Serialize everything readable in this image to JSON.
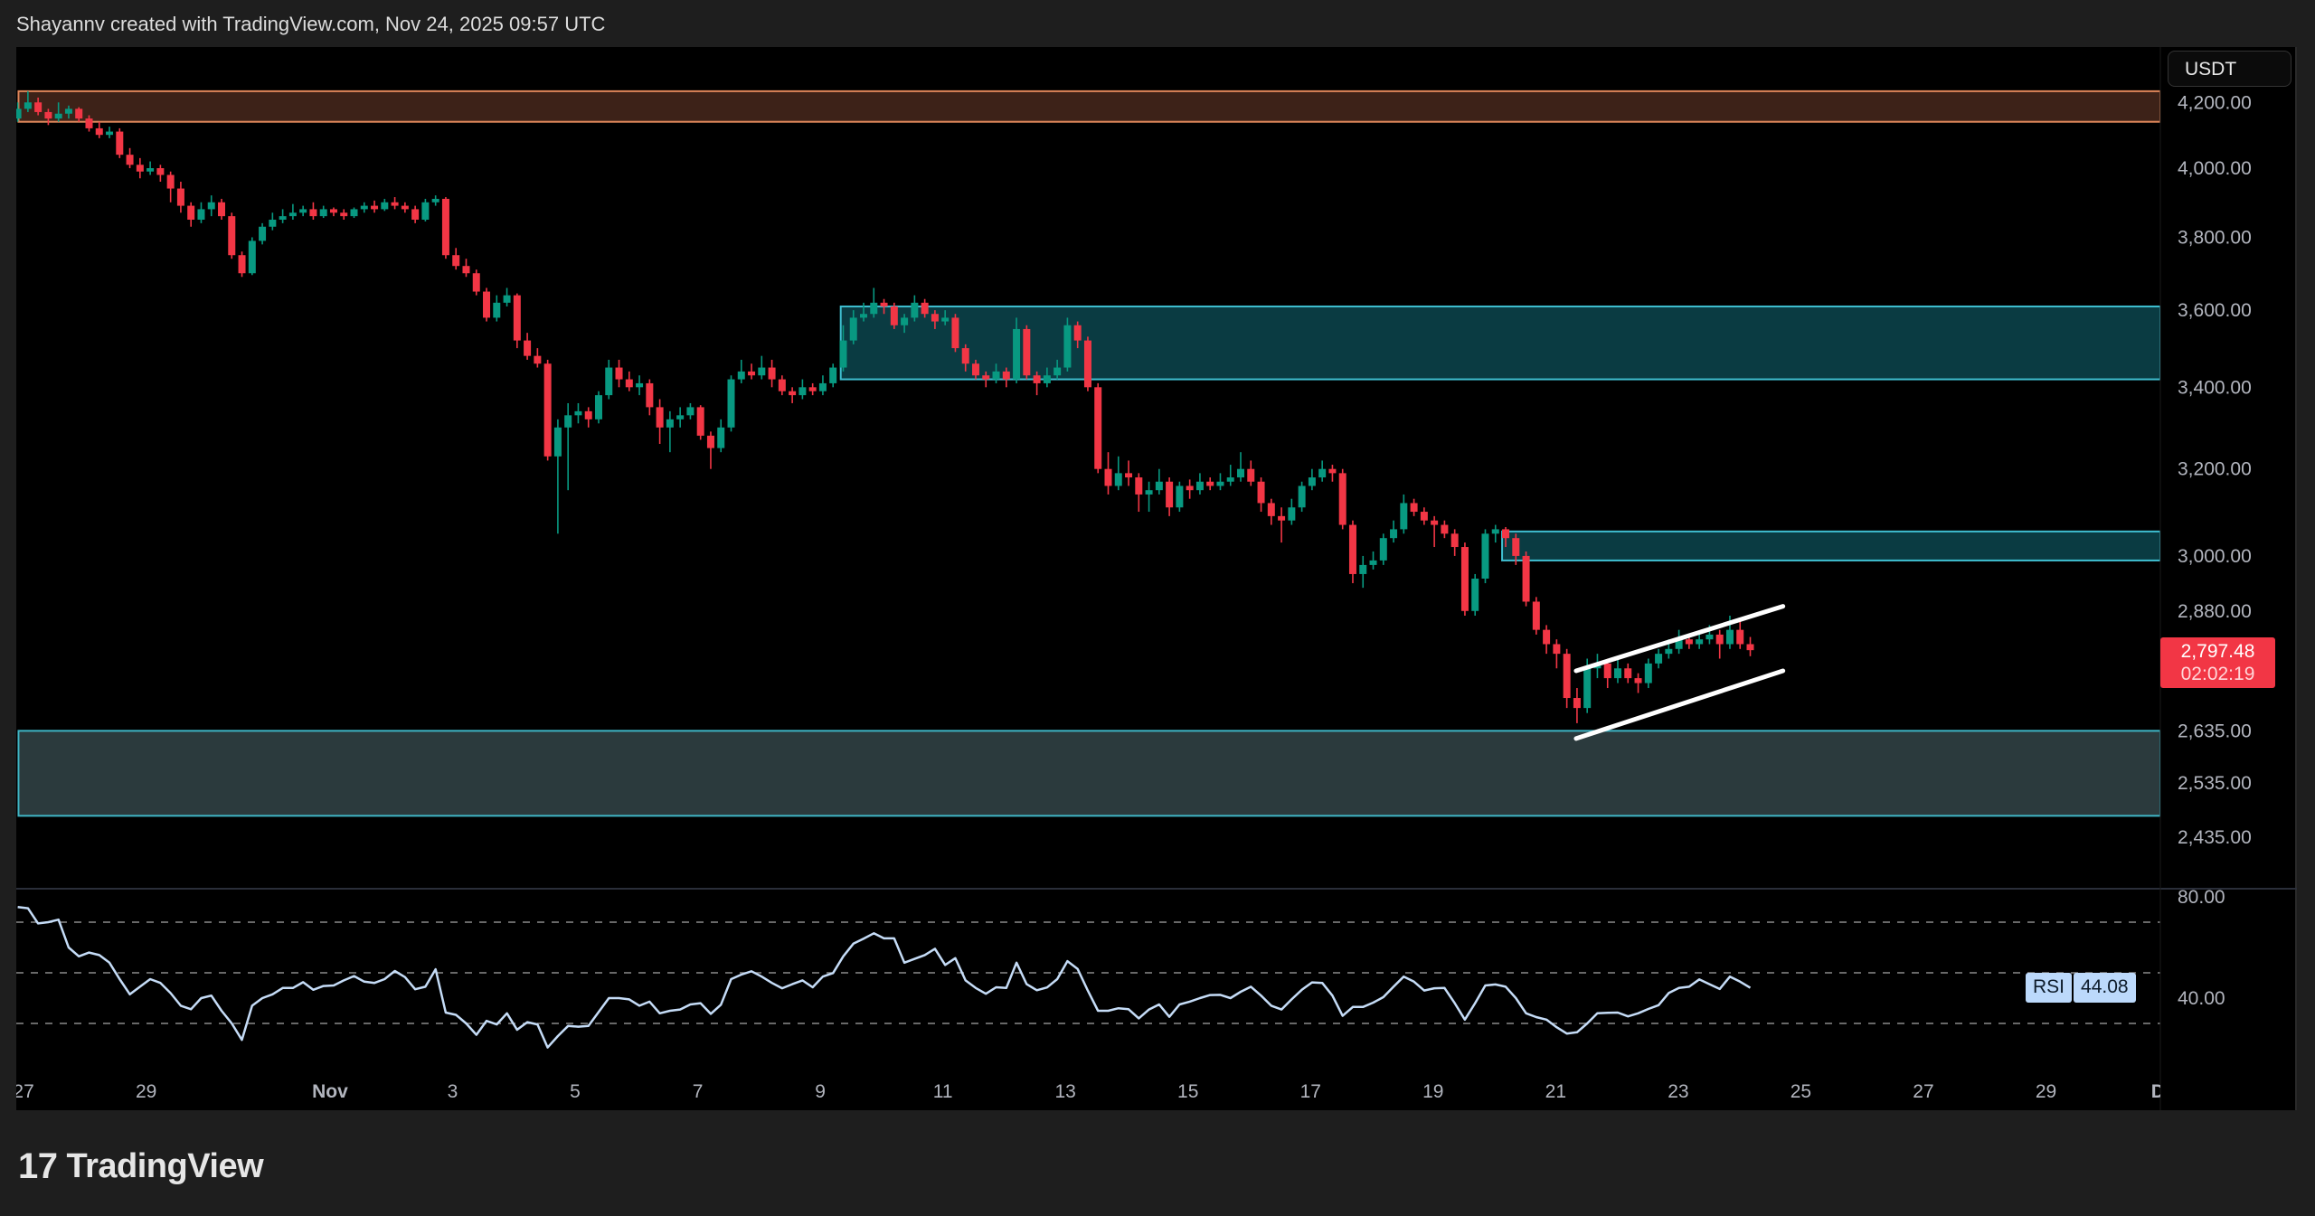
{
  "header": {
    "attribution": "Shayannv created with TradingView.com, Nov 24, 2025 09:57 UTC"
  },
  "footer": {
    "logo_text": "TradingView",
    "logo_mark": "17"
  },
  "currency_button": "USDT",
  "last_price": {
    "value": "2,797.48",
    "countdown": "02:02:19"
  },
  "rsi_badge": {
    "label": "RSI",
    "value": "44.08"
  },
  "colors": {
    "up": "#089981",
    "down": "#f23645",
    "rsi_line": "#c5dcf7",
    "background": "#000000",
    "supply_zone": "#3d2218",
    "supply_border": "#e0875a",
    "resistance_zone": "#0a3b42",
    "resistance_border": "#3fbfd1",
    "support_zone": "#2b3a3d",
    "support_border": "#3fb6c6",
    "wedge": "#ffffff"
  },
  "chart_data": {
    "type": "candlestick",
    "price_scale": "log",
    "price_axis_labels": [
      "4,200.00",
      "4,000.00",
      "3,800.00",
      "3,600.00",
      "3,400.00",
      "3,200.00",
      "3,000.00",
      "2,880.00",
      "2,635.00",
      "2,535.00",
      "2,435.00"
    ],
    "price_axis_values": [
      4200,
      4000,
      3800,
      3600,
      3400,
      3200,
      3000,
      2880,
      2635,
      2535,
      2435
    ],
    "time_axis": [
      {
        "label": "27",
        "date": "2025-10-27"
      },
      {
        "label": "29",
        "date": "2025-10-29"
      },
      {
        "label": "Nov",
        "date": "2025-11-01"
      },
      {
        "label": "3",
        "date": "2025-11-03"
      },
      {
        "label": "5",
        "date": "2025-11-05"
      },
      {
        "label": "7",
        "date": "2025-11-07"
      },
      {
        "label": "9",
        "date": "2025-11-09"
      },
      {
        "label": "11",
        "date": "2025-11-11"
      },
      {
        "label": "13",
        "date": "2025-11-13"
      },
      {
        "label": "15",
        "date": "2025-11-15"
      },
      {
        "label": "17",
        "date": "2025-11-17"
      },
      {
        "label": "19",
        "date": "2025-11-19"
      },
      {
        "label": "21",
        "date": "2025-11-21"
      },
      {
        "label": "23",
        "date": "2025-11-23"
      },
      {
        "label": "25",
        "date": "2025-11-25"
      },
      {
        "label": "27",
        "date": "2025-11-27"
      },
      {
        "label": "29",
        "date": "2025-11-29"
      },
      {
        "label": "Dec",
        "date": "2025-12-01"
      }
    ],
    "candles_ohlc": [
      [
        4150,
        4200,
        4140,
        4180
      ],
      [
        4180,
        4235,
        4170,
        4200
      ],
      [
        4200,
        4215,
        4160,
        4170
      ],
      [
        4170,
        4180,
        4130,
        4150
      ],
      [
        4150,
        4200,
        4140,
        4165
      ],
      [
        4165,
        4190,
        4150,
        4180
      ],
      [
        4180,
        4185,
        4140,
        4150
      ],
      [
        4150,
        4160,
        4110,
        4120
      ],
      [
        4120,
        4140,
        4090,
        4100
      ],
      [
        4100,
        4125,
        4090,
        4110
      ],
      [
        4110,
        4120,
        4030,
        4040
      ],
      [
        4040,
        4060,
        4000,
        4010
      ],
      [
        4010,
        4030,
        3970,
        3990
      ],
      [
        3990,
        4020,
        3980,
        4000
      ],
      [
        4000,
        4010,
        3960,
        3980
      ],
      [
        3980,
        3990,
        3900,
        3940
      ],
      [
        3940,
        3960,
        3870,
        3890
      ],
      [
        3890,
        3900,
        3830,
        3850
      ],
      [
        3850,
        3900,
        3840,
        3880
      ],
      [
        3880,
        3920,
        3860,
        3900
      ],
      [
        3900,
        3910,
        3850,
        3860
      ],
      [
        3860,
        3870,
        3740,
        3750
      ],
      [
        3750,
        3760,
        3690,
        3700
      ],
      [
        3700,
        3800,
        3695,
        3790
      ],
      [
        3790,
        3840,
        3780,
        3830
      ],
      [
        3830,
        3870,
        3820,
        3850
      ],
      [
        3850,
        3880,
        3840,
        3860
      ],
      [
        3860,
        3895,
        3850,
        3870
      ],
      [
        3870,
        3890,
        3860,
        3880
      ],
      [
        3880,
        3900,
        3850,
        3860
      ],
      [
        3860,
        3890,
        3855,
        3880
      ],
      [
        3880,
        3885,
        3860,
        3870
      ],
      [
        3870,
        3880,
        3850,
        3860
      ],
      [
        3860,
        3885,
        3855,
        3880
      ],
      [
        3880,
        3900,
        3870,
        3890
      ],
      [
        3890,
        3905,
        3870,
        3880
      ],
      [
        3880,
        3910,
        3875,
        3900
      ],
      [
        3900,
        3915,
        3880,
        3890
      ],
      [
        3890,
        3900,
        3870,
        3880
      ],
      [
        3880,
        3890,
        3840,
        3850
      ],
      [
        3850,
        3910,
        3845,
        3900
      ],
      [
        3900,
        3920,
        3890,
        3910
      ],
      [
        3910,
        3915,
        3740,
        3750
      ],
      [
        3750,
        3770,
        3710,
        3720
      ],
      [
        3720,
        3740,
        3690,
        3700
      ],
      [
        3700,
        3710,
        3640,
        3650
      ],
      [
        3650,
        3660,
        3570,
        3580
      ],
      [
        3580,
        3640,
        3570,
        3620
      ],
      [
        3620,
        3660,
        3610,
        3640
      ],
      [
        3640,
        3645,
        3500,
        3520
      ],
      [
        3520,
        3540,
        3470,
        3480
      ],
      [
        3480,
        3500,
        3450,
        3460
      ],
      [
        3460,
        3470,
        3220,
        3230
      ],
      [
        3230,
        3320,
        3050,
        3300
      ],
      [
        3300,
        3360,
        3150,
        3330
      ],
      [
        3330,
        3360,
        3310,
        3340
      ],
      [
        3340,
        3350,
        3300,
        3320
      ],
      [
        3320,
        3390,
        3310,
        3380
      ],
      [
        3380,
        3470,
        3370,
        3450
      ],
      [
        3450,
        3470,
        3400,
        3420
      ],
      [
        3420,
        3440,
        3390,
        3400
      ],
      [
        3400,
        3430,
        3380,
        3410
      ],
      [
        3410,
        3420,
        3330,
        3350
      ],
      [
        3350,
        3370,
        3260,
        3300
      ],
      [
        3300,
        3340,
        3240,
        3320
      ],
      [
        3320,
        3350,
        3300,
        3330
      ],
      [
        3330,
        3360,
        3320,
        3350
      ],
      [
        3350,
        3355,
        3270,
        3280
      ],
      [
        3280,
        3290,
        3200,
        3250
      ],
      [
        3250,
        3320,
        3240,
        3300
      ],
      [
        3300,
        3430,
        3290,
        3420
      ],
      [
        3420,
        3470,
        3410,
        3440
      ],
      [
        3440,
        3460,
        3420,
        3430
      ],
      [
        3430,
        3480,
        3420,
        3450
      ],
      [
        3450,
        3470,
        3400,
        3420
      ],
      [
        3420,
        3430,
        3380,
        3390
      ],
      [
        3390,
        3400,
        3360,
        3380
      ],
      [
        3380,
        3420,
        3370,
        3400
      ],
      [
        3400,
        3410,
        3380,
        3390
      ],
      [
        3390,
        3430,
        3380,
        3410
      ],
      [
        3410,
        3460,
        3400,
        3450
      ],
      [
        3450,
        3560,
        3440,
        3520
      ],
      [
        3520,
        3600,
        3510,
        3580
      ],
      [
        3580,
        3620,
        3570,
        3590
      ],
      [
        3590,
        3660,
        3580,
        3620
      ],
      [
        3620,
        3630,
        3590,
        3610
      ],
      [
        3610,
        3620,
        3550,
        3560
      ],
      [
        3560,
        3590,
        3540,
        3580
      ],
      [
        3580,
        3640,
        3570,
        3620
      ],
      [
        3620,
        3630,
        3580,
        3590
      ],
      [
        3590,
        3600,
        3550,
        3570
      ],
      [
        3570,
        3600,
        3560,
        3580
      ],
      [
        3580,
        3590,
        3490,
        3500
      ],
      [
        3500,
        3510,
        3440,
        3460
      ],
      [
        3460,
        3470,
        3420,
        3430
      ],
      [
        3430,
        3440,
        3400,
        3420
      ],
      [
        3420,
        3460,
        3410,
        3440
      ],
      [
        3440,
        3450,
        3400,
        3420
      ],
      [
        3420,
        3580,
        3410,
        3550
      ],
      [
        3550,
        3560,
        3420,
        3430
      ],
      [
        3430,
        3440,
        3380,
        3410
      ],
      [
        3410,
        3450,
        3400,
        3430
      ],
      [
        3430,
        3470,
        3420,
        3450
      ],
      [
        3450,
        3580,
        3440,
        3560
      ],
      [
        3560,
        3570,
        3500,
        3520
      ],
      [
        3520,
        3530,
        3390,
        3400
      ],
      [
        3400,
        3410,
        3190,
        3200
      ],
      [
        3200,
        3240,
        3140,
        3160
      ],
      [
        3160,
        3230,
        3150,
        3190
      ],
      [
        3190,
        3220,
        3160,
        3180
      ],
      [
        3180,
        3190,
        3100,
        3140
      ],
      [
        3140,
        3170,
        3100,
        3150
      ],
      [
        3150,
        3200,
        3140,
        3170
      ],
      [
        3170,
        3180,
        3090,
        3110
      ],
      [
        3110,
        3170,
        3100,
        3160
      ],
      [
        3160,
        3175,
        3130,
        3150
      ],
      [
        3150,
        3190,
        3140,
        3170
      ],
      [
        3170,
        3180,
        3150,
        3160
      ],
      [
        3160,
        3190,
        3150,
        3170
      ],
      [
        3170,
        3210,
        3160,
        3180
      ],
      [
        3180,
        3240,
        3170,
        3200
      ],
      [
        3200,
        3220,
        3160,
        3170
      ],
      [
        3170,
        3180,
        3100,
        3120
      ],
      [
        3120,
        3130,
        3070,
        3090
      ],
      [
        3090,
        3110,
        3030,
        3080
      ],
      [
        3080,
        3130,
        3070,
        3110
      ],
      [
        3110,
        3170,
        3100,
        3160
      ],
      [
        3160,
        3200,
        3150,
        3180
      ],
      [
        3180,
        3220,
        3170,
        3200
      ],
      [
        3200,
        3210,
        3170,
        3190
      ],
      [
        3190,
        3200,
        3060,
        3070
      ],
      [
        3070,
        3080,
        2940,
        2960
      ],
      [
        2960,
        3000,
        2930,
        2980
      ],
      [
        2980,
        3010,
        2970,
        2990
      ],
      [
        2990,
        3050,
        2980,
        3040
      ],
      [
        3040,
        3080,
        3030,
        3060
      ],
      [
        3060,
        3140,
        3050,
        3120
      ],
      [
        3120,
        3130,
        3090,
        3100
      ],
      [
        3100,
        3110,
        3070,
        3080
      ],
      [
        3080,
        3090,
        3020,
        3070
      ],
      [
        3070,
        3080,
        3040,
        3050
      ],
      [
        3050,
        3060,
        3000,
        3020
      ],
      [
        3020,
        3030,
        2870,
        2880
      ],
      [
        2880,
        2960,
        2870,
        2950
      ],
      [
        2950,
        3060,
        2940,
        3050
      ],
      [
        3050,
        3070,
        3030,
        3060
      ],
      [
        3060,
        3065,
        3020,
        3040
      ],
      [
        3040,
        3050,
        2980,
        3000
      ],
      [
        3000,
        3010,
        2890,
        2900
      ],
      [
        2900,
        2910,
        2830,
        2840
      ],
      [
        2840,
        2850,
        2790,
        2810
      ],
      [
        2810,
        2820,
        2760,
        2790
      ],
      [
        2790,
        2800,
        2680,
        2700
      ],
      [
        2700,
        2720,
        2650,
        2680
      ],
      [
        2680,
        2780,
        2670,
        2760
      ],
      [
        2760,
        2790,
        2740,
        2770
      ],
      [
        2770,
        2780,
        2720,
        2740
      ],
      [
        2740,
        2780,
        2730,
        2760
      ],
      [
        2760,
        2770,
        2730,
        2740
      ],
      [
        2740,
        2750,
        2710,
        2730
      ],
      [
        2730,
        2780,
        2720,
        2770
      ],
      [
        2770,
        2800,
        2760,
        2790
      ],
      [
        2790,
        2820,
        2780,
        2800
      ],
      [
        2800,
        2840,
        2790,
        2820
      ],
      [
        2820,
        2830,
        2800,
        2810
      ],
      [
        2810,
        2830,
        2800,
        2820
      ],
      [
        2820,
        2850,
        2810,
        2830
      ],
      [
        2830,
        2840,
        2780,
        2810
      ],
      [
        2810,
        2870,
        2800,
        2840
      ],
      [
        2840,
        2860,
        2800,
        2810
      ],
      [
        2810,
        2825,
        2785,
        2797.48
      ]
    ],
    "zones": [
      {
        "name": "supply",
        "top": 4235,
        "bottom": 4140,
        "from": "2025-10-26T22:00",
        "color_key": "supply"
      },
      {
        "name": "resistance-upper",
        "top": 3610,
        "bottom": 3420,
        "from": "2025-11-09T08:00",
        "color_key": "resistance"
      },
      {
        "name": "resistance-lower",
        "top": 3055,
        "bottom": 2990,
        "from": "2025-11-20T03:00",
        "color_key": "resistance"
      },
      {
        "name": "support",
        "top": 2635,
        "bottom": 2474,
        "from": "2025-10-26T22:00",
        "color_key": "support"
      }
    ],
    "wedge_lines": [
      {
        "from": {
          "date": "2025-11-21T08:00",
          "price": 2755
        },
        "to": {
          "date": "2025-11-24T17:00",
          "price": 2890
        }
      },
      {
        "from": {
          "date": "2025-11-21T08:00",
          "price": 2620
        },
        "to": {
          "date": "2025-11-24T17:00",
          "price": 2755
        }
      }
    ],
    "rsi": {
      "axis_labels": [
        "80.00",
        "40.00"
      ],
      "axis_values": [
        80,
        40
      ],
      "bands": [
        70,
        50,
        30
      ],
      "values": [
        76,
        75.5,
        69.5,
        70,
        71,
        60,
        56.5,
        58,
        57,
        54,
        47.5,
        41.5,
        44.5,
        47.5,
        46,
        42,
        37,
        35.6,
        40,
        41,
        35,
        30,
        23.5,
        37,
        40,
        41.5,
        44,
        44,
        46.3,
        43.3,
        44.8,
        45,
        47,
        48.7,
        46.5,
        46,
        47.5,
        50.7,
        48.3,
        43.5,
        44.5,
        51.4,
        34.3,
        33.4,
        30,
        25.5,
        31,
        29.6,
        34,
        27.5,
        30.5,
        29.6,
        20.5,
        25,
        29,
        28.7,
        29,
        34.5,
        40,
        40,
        39.5,
        37,
        38.6,
        34,
        35,
        35.5,
        37.5,
        38,
        33.8,
        37.4,
        47.5,
        49.3,
        50.6,
        48.5,
        46,
        43.9,
        45.5,
        47,
        44.3,
        48.5,
        49.9,
        56.5,
        61.5,
        63.5,
        65.6,
        63.6,
        63.6,
        54,
        55.5,
        57,
        59.5,
        53.1,
        55.8,
        47,
        44,
        41.7,
        44.3,
        44,
        54,
        45.5,
        43.1,
        44.2,
        47.5,
        54.6,
        51.5,
        43,
        35,
        35,
        36,
        35.6,
        32,
        35.5,
        37.5,
        32.6,
        37.5,
        38.6,
        40,
        41.2,
        41.3,
        40,
        42.5,
        44.5,
        41,
        37,
        35.5,
        39.5,
        43.3,
        46.2,
        46,
        41,
        33,
        36.5,
        36.5,
        38.2,
        40.4,
        44.5,
        48.5,
        46.5,
        43,
        43.9,
        44,
        38,
        31.5,
        38,
        45,
        45.4,
        44.5,
        40,
        34,
        32.5,
        31.5,
        28.5,
        26,
        26.5,
        30,
        34,
        34.2,
        34.3,
        32.8,
        34,
        35.7,
        37.2,
        42,
        44,
        44.5,
        47.4,
        45.5,
        43.6,
        48.5,
        46.5,
        44.08
      ]
    }
  }
}
